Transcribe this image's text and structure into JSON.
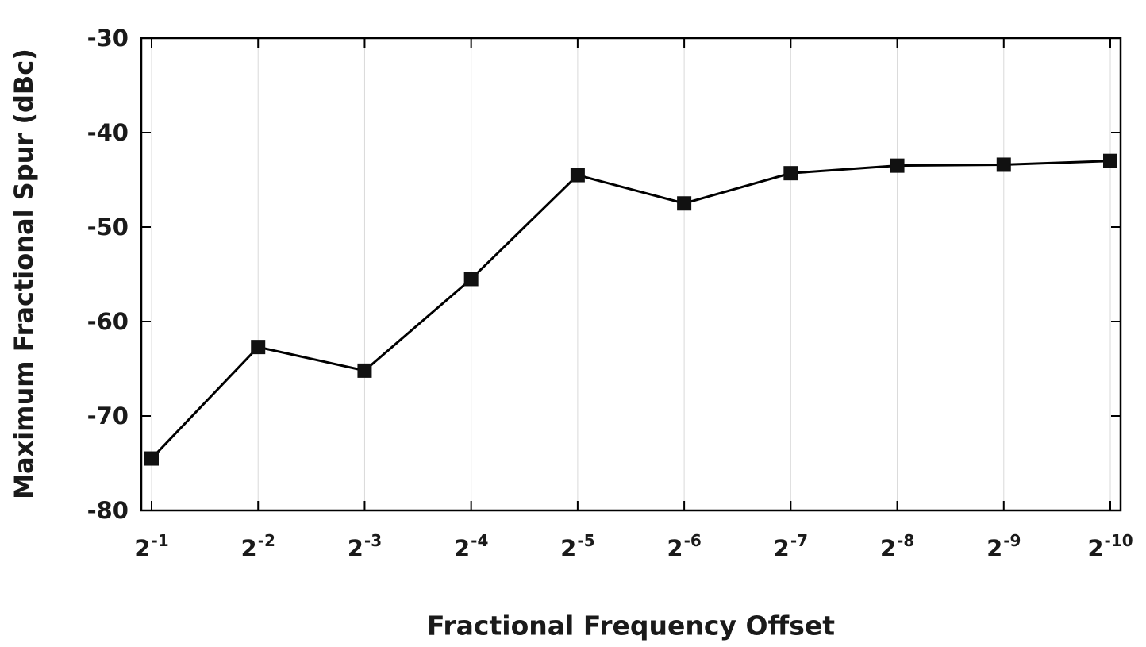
{
  "chart_data": {
    "type": "line",
    "title": "",
    "xlabel": "Fractional Frequency Offset",
    "ylabel": "Maximum Fractional Spur (dBc)",
    "categories": [
      "2^-1",
      "2^-2",
      "2^-3",
      "2^-4",
      "2^-5",
      "2^-6",
      "2^-7",
      "2^-8",
      "2^-9",
      "2^-10"
    ],
    "values": [
      -74.5,
      -62.7,
      -65.2,
      -55.5,
      -44.5,
      -47.5,
      -44.3,
      -43.5,
      -43.4,
      -43.0
    ],
    "ylim": [
      -80,
      -30
    ],
    "yticks": [
      -30,
      -40,
      -50,
      -60,
      -70,
      -80
    ],
    "marker": "square",
    "legend": "none",
    "grid": "vertical-light",
    "colors": {
      "line": "#000000",
      "marker": "#111111",
      "frame": "#000000",
      "grid": "#d9d9d9",
      "text": "#1a1a1a"
    }
  }
}
